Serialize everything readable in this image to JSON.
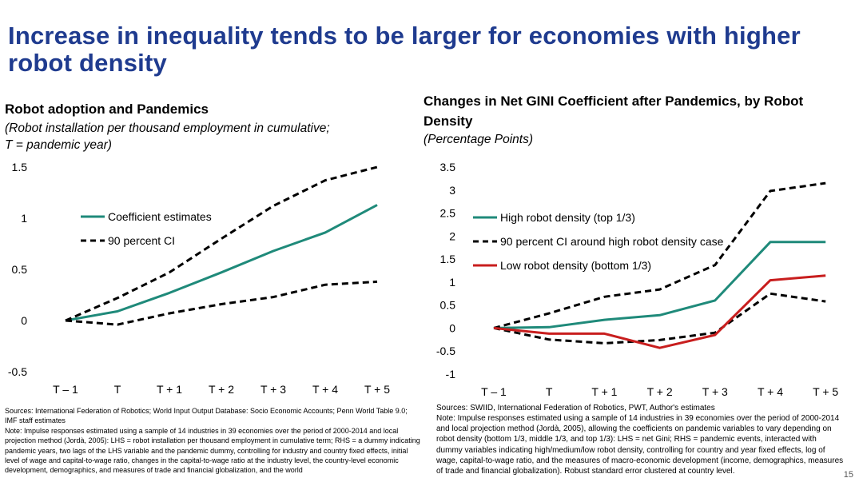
{
  "title": "Increase in inequality tends to be larger for economies with higher robot density",
  "left": {
    "title": "Robot adoption and Pandemics",
    "subtitle_line1": "(Robot installation per thousand employment in cumulative;",
    "subtitle_line2": "T = pandemic year)",
    "source": "Sources: International Federation of Robotics; World Input Output Database: Socio Economic Accounts; Penn World Table 9.0; IMF staff estimates",
    "note": "Note: Impulse responses estimated using a sample of 14 industries in 39 economies over the period of 2000-2014 and local projection method (Jordà, 2005): LHS = robot installation per thousand employment in cumulative term; RHS = a dummy indicating pandemic years, two lags of the LHS variable and the pandemic dummy, controlling for industry and country fixed effects, initial level of wage and capital-to-wage ratio, changes in the capital-to-wage ratio at the industry level, the country-level economic development, demographics, and measures of trade and financial globalization, and the world"
  },
  "right": {
    "title_line1": "Changes in Net GINI Coefficient after Pandemics, by Robot",
    "title_line2": "Density",
    "subtitle": "(Percentage Points)",
    "source": "Sources: SWIID, International Federation of Robotics, PWT, Author's estimates",
    "note": "Note: Impulse responses estimated using a sample of 14 industries in 39 economies over the period of 2000-2014 and local projection method (Jordà, 2005), allowing the coefficients on pandemic variables to vary depending on robot density (bottom 1/3, middle 1/3, and top 1/3): LHS = net Gini; RHS = pandemic events, interacted with dummy variables indicating high/medium/low robot density, controlling for country and year fixed effects, log of wage, capital-to-wage ratio, and the measures of macro-economic development (income, demographics, measures of trade and financial globalization). Robust standard error clustered at country level."
  },
  "page_number": "15",
  "chart_data": [
    {
      "type": "line",
      "categories": [
        "T – 1",
        "T",
        "T + 1",
        "T + 2",
        "T + 3",
        "T + 4",
        "T + 5"
      ],
      "ylim": [
        -0.5,
        1.5
      ],
      "yticks": [
        "1.5",
        "1",
        "0.5",
        "0",
        "-0.5"
      ],
      "yticks_values": [
        1.5,
        1,
        0.5,
        0,
        -0.5
      ],
      "legend_position": "upper-left",
      "series": [
        {
          "name": "Coefficient estimates",
          "color": "#1f8a7a",
          "style": "solid",
          "values": [
            0,
            0.09,
            0.27,
            0.47,
            0.68,
            0.86,
            1.13
          ]
        },
        {
          "name": "90 percent CI",
          "color": "#000000",
          "style": "dashed",
          "values": [
            0,
            0.22,
            0.47,
            0.8,
            1.12,
            1.37,
            1.5
          ]
        },
        {
          "name": "",
          "color": "#000000",
          "style": "dashed",
          "values": [
            0,
            -0.04,
            0.07,
            0.16,
            0.23,
            0.35,
            0.38
          ]
        }
      ]
    },
    {
      "type": "line",
      "categories": [
        "T – 1",
        "T",
        "T + 1",
        "T + 2",
        "T + 3",
        "T + 4",
        "T + 5"
      ],
      "ylim": [
        -1,
        3.5
      ],
      "yticks": [
        "3.5",
        "3",
        "2.5",
        "2",
        "1.5",
        "1",
        "0.5",
        "0",
        "-0.5",
        "-1"
      ],
      "yticks_values": [
        3.5,
        3,
        2.5,
        2,
        1.5,
        1,
        0.5,
        0,
        -0.5,
        -1
      ],
      "legend_position": "upper-left",
      "series": [
        {
          "name": "High robot density (top 1/3)",
          "color": "#1f8a7a",
          "style": "solid",
          "values": [
            0,
            0.02,
            0.18,
            0.28,
            0.6,
            1.87,
            1.87
          ]
        },
        {
          "name": "90 percent CI around high robot density case",
          "color": "#000000",
          "style": "dashed",
          "values": [
            0,
            0.32,
            0.68,
            0.84,
            1.37,
            2.98,
            3.15
          ]
        },
        {
          "name": "",
          "color": "#000000",
          "style": "dashed",
          "values": [
            0,
            -0.25,
            -0.33,
            -0.26,
            -0.1,
            0.75,
            0.58
          ]
        },
        {
          "name": "Low robot density (bottom 1/3)",
          "color": "#c81e1e",
          "style": "solid",
          "values": [
            0,
            -0.12,
            -0.12,
            -0.43,
            -0.15,
            1.04,
            1.14
          ]
        }
      ]
    }
  ]
}
